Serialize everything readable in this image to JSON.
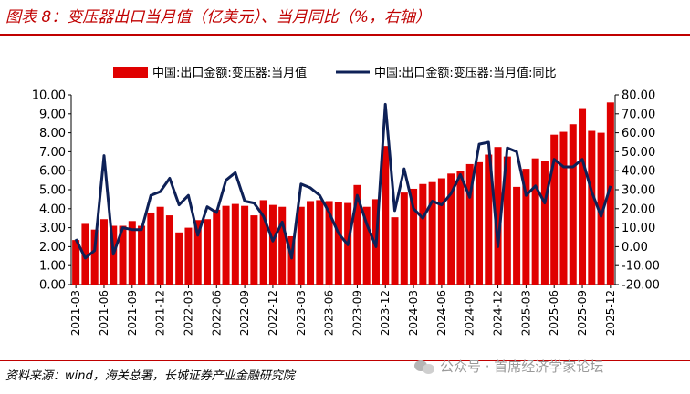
{
  "header": {
    "title": "图表 8：变压器出口当月值（亿美元）、当月同比（%，右轴）"
  },
  "footer": {
    "source": "资料来源：wind，海关总署，长城证券产业金融研究院"
  },
  "watermark": {
    "text": "公众号 · 首席经济学家论坛"
  },
  "chart_data": {
    "type": "bar",
    "legend_position": "top",
    "grid": false,
    "colors": {
      "bar": "#e00000",
      "line": "#0e2157"
    },
    "categories": [
      "2021-03",
      "2021-04",
      "2021-05",
      "2021-06",
      "2021-07",
      "2021-08",
      "2021-09",
      "2021-10",
      "2021-11",
      "2021-12",
      "2022-01",
      "2022-02",
      "2022-03",
      "2022-04",
      "2022-05",
      "2022-06",
      "2022-07",
      "2022-08",
      "2022-09",
      "2022-10",
      "2022-11",
      "2022-12",
      "2023-01",
      "2023-02",
      "2023-03",
      "2023-04",
      "2023-05",
      "2023-06",
      "2023-07",
      "2023-08",
      "2023-09",
      "2023-10",
      "2023-11",
      "2023-12",
      "2024-01",
      "2024-02",
      "2024-03",
      "2024-04",
      "2024-05",
      "2024-06",
      "2024-07",
      "2024-08",
      "2024-09",
      "2024-10",
      "2024-11",
      "2024-12",
      "2025-01",
      "2025-02",
      "2025-03",
      "2025-04",
      "2025-05",
      "2025-06",
      "2025-07",
      "2025-08",
      "2025-09",
      "2025-10",
      "2025-11",
      "2025-12"
    ],
    "x_tick_labels": [
      "2021-03",
      "2021-06",
      "2021-09",
      "2021-12",
      "2022-03",
      "2022-06",
      "2022-09",
      "2022-12",
      "2023-03",
      "2023-06",
      "2023-09",
      "2023-12",
      "2024-03",
      "2024-06",
      "2024-09",
      "2024-12",
      "2025-03",
      "2025-06",
      "2025-09",
      "2025-12"
    ],
    "y_left": {
      "min": 0,
      "max": 10,
      "step": 1,
      "tick_labels": [
        "0.00",
        "1.00",
        "2.00",
        "3.00",
        "4.00",
        "5.00",
        "6.00",
        "7.00",
        "8.00",
        "9.00",
        "10.00"
      ]
    },
    "y_right": {
      "min": -20,
      "max": 80,
      "step": 10,
      "tick_labels": [
        "-20.00",
        "-10.00",
        "0.00",
        "10.00",
        "20.00",
        "30.00",
        "40.00",
        "50.00",
        "60.00",
        "70.00",
        "80.00"
      ]
    },
    "series": [
      {
        "name": "中国:出口金额:变压器:当月值",
        "type": "bar",
        "axis": "left",
        "values": [
          2.35,
          3.2,
          2.9,
          3.45,
          3.1,
          3.1,
          3.35,
          3.1,
          3.8,
          4.1,
          3.65,
          2.75,
          3.0,
          3.4,
          3.45,
          3.95,
          4.15,
          4.25,
          4.15,
          3.65,
          4.45,
          4.2,
          4.1,
          2.55,
          4.1,
          4.4,
          4.45,
          4.4,
          4.35,
          4.3,
          5.25,
          4.1,
          4.5,
          7.3,
          3.55,
          4.85,
          5.05,
          5.3,
          5.4,
          5.6,
          5.85,
          6.0,
          6.35,
          6.45,
          6.85,
          7.25,
          6.75,
          5.15,
          6.1,
          6.65,
          6.5,
          7.9,
          8.05,
          8.45,
          9.3,
          8.1,
          8.0,
          9.6
        ]
      },
      {
        "name": "中国:出口金额:变压器:当月值:同比",
        "type": "line",
        "axis": "right",
        "values": [
          4,
          -6,
          -2,
          48,
          -4,
          10,
          9,
          9,
          27,
          29,
          36,
          22,
          27,
          6,
          21,
          18,
          35,
          39,
          24,
          23,
          16,
          3,
          13,
          -6,
          33,
          31,
          27,
          18,
          7,
          1,
          27,
          12,
          0,
          75,
          19,
          41,
          20,
          15,
          24,
          22,
          28,
          38,
          26,
          54,
          55,
          0,
          52,
          50,
          27,
          32,
          23,
          46,
          42,
          42,
          46,
          29,
          16,
          32
        ]
      }
    ]
  }
}
